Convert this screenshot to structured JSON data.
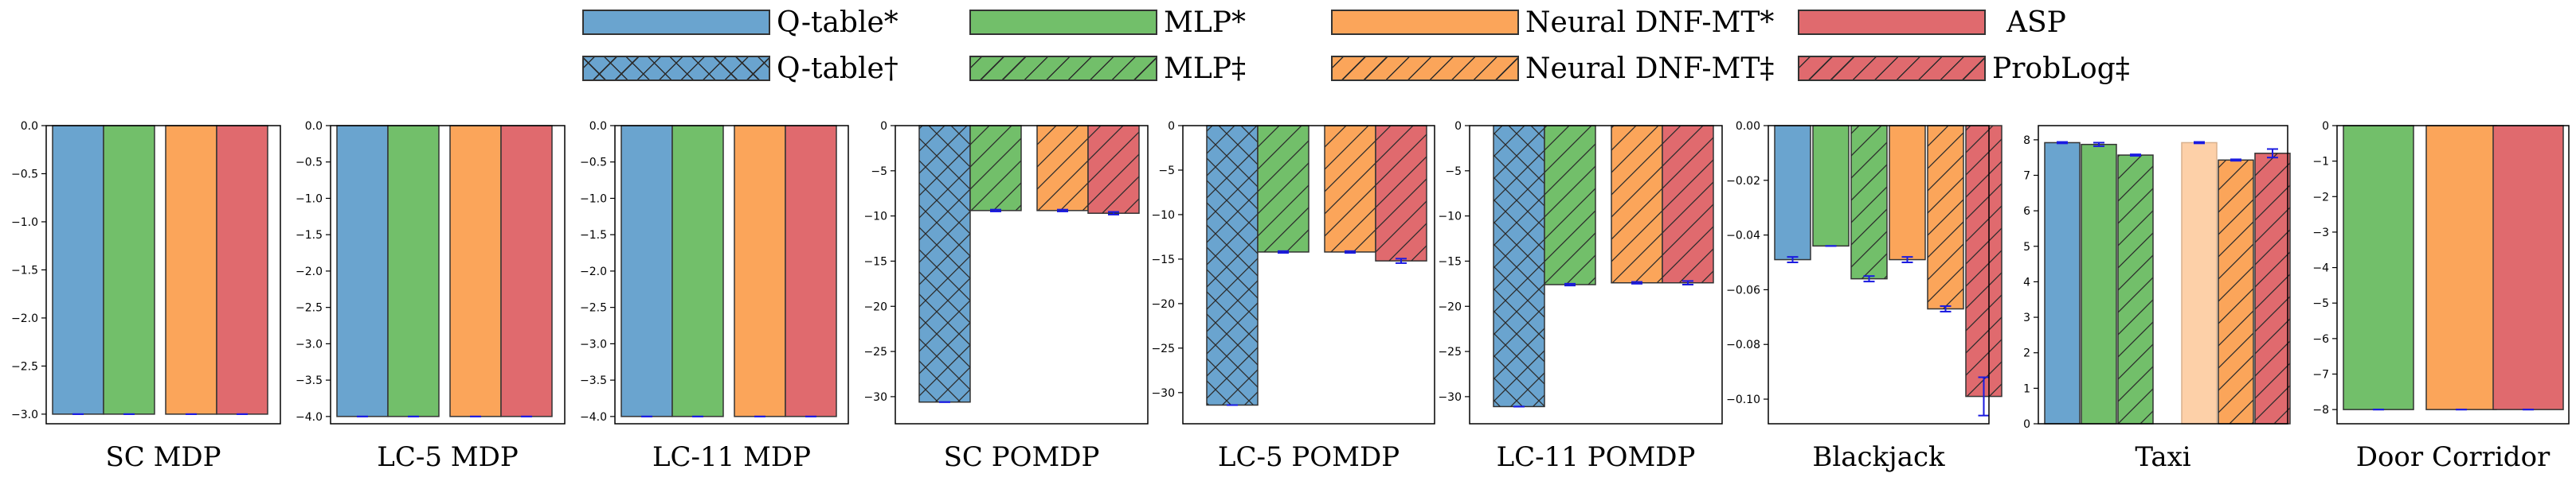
{
  "colors": {
    "qtable": "#6aa4cf",
    "mlp": "#72bf6a",
    "ndnf": "#fba55a",
    "asp": "#e06a6e",
    "ndnf_light": "#fdd0a8",
    "errorbar": "#1a1ae0",
    "edge": "#333333"
  },
  "legend": {
    "items": [
      {
        "label": "Q-table*",
        "color": "qtable",
        "hatch": "none"
      },
      {
        "label": "MLP*",
        "color": "mlp",
        "hatch": "none"
      },
      {
        "label": "Neural DNF-MT*",
        "color": "ndnf",
        "hatch": "none"
      },
      {
        "label": "ASP",
        "color": "asp",
        "hatch": "none"
      },
      {
        "label": "Q-table†",
        "color": "qtable",
        "hatch": "cross"
      },
      {
        "label": "MLP‡",
        "color": "mlp",
        "hatch": "diag"
      },
      {
        "label": "Neural DNF-MT‡",
        "color": "ndnf",
        "hatch": "diag"
      },
      {
        "label": "ProbLog‡",
        "color": "asp",
        "hatch": "diag"
      }
    ]
  },
  "chart_data": [
    {
      "type": "bar",
      "title": "SC MDP",
      "ylim": [
        -3.1,
        0.0
      ],
      "yticks": [
        0.0,
        -0.5,
        -1.0,
        -1.5,
        -2.0,
        -2.5,
        -3.0
      ],
      "ytick_labels": [
        "0.0",
        "−0.5",
        "−1.0",
        "−1.5",
        "−2.0",
        "−2.5",
        "−3.0"
      ],
      "series": [
        {
          "name": "Q-table*",
          "value": -3.0,
          "error": 0.0
        },
        {
          "name": "MLP*",
          "value": -3.0,
          "error": 0.0
        },
        {
          "name": "Neural DNF-MT*",
          "value": -3.0,
          "error": 0.0
        },
        {
          "name": "ASP",
          "value": -3.0,
          "error": 0.0
        }
      ]
    },
    {
      "type": "bar",
      "title": "LC-5 MDP",
      "ylim": [
        -4.1,
        0.0
      ],
      "yticks": [
        0.0,
        -0.5,
        -1.0,
        -1.5,
        -2.0,
        -2.5,
        -3.0,
        -3.5,
        -4.0
      ],
      "ytick_labels": [
        "0.0",
        "−0.5",
        "−1.0",
        "−1.5",
        "−2.0",
        "−2.5",
        "−3.0",
        "−3.5",
        "−4.0"
      ],
      "series": [
        {
          "name": "Q-table*",
          "value": -4.0,
          "error": 0.0
        },
        {
          "name": "MLP*",
          "value": -4.0,
          "error": 0.0
        },
        {
          "name": "Neural DNF-MT*",
          "value": -4.0,
          "error": 0.0
        },
        {
          "name": "ASP",
          "value": -4.0,
          "error": 0.0
        }
      ]
    },
    {
      "type": "bar",
      "title": "LC-11 MDP",
      "ylim": [
        -4.1,
        0.0
      ],
      "yticks": [
        0.0,
        -0.5,
        -1.0,
        -1.5,
        -2.0,
        -2.5,
        -3.0,
        -3.5,
        -4.0
      ],
      "ytick_labels": [
        "0.0",
        "−0.5",
        "−1.0",
        "−1.5",
        "−2.0",
        "−2.5",
        "−3.0",
        "−3.5",
        "−4.0"
      ],
      "series": [
        {
          "name": "Q-table*",
          "value": -4.0,
          "error": 0.0
        },
        {
          "name": "MLP*",
          "value": -4.0,
          "error": 0.0
        },
        {
          "name": "Neural DNF-MT*",
          "value": -4.0,
          "error": 0.0
        },
        {
          "name": "ASP",
          "value": -4.0,
          "error": 0.0
        }
      ]
    },
    {
      "type": "bar",
      "title": "SC POMDP",
      "ylim": [
        -33.0,
        0.0
      ],
      "yticks": [
        0,
        -5,
        -10,
        -15,
        -20,
        -25,
        -30
      ],
      "ytick_labels": [
        "0",
        "−5",
        "−10",
        "−15",
        "−20",
        "−25",
        "−30"
      ],
      "series": [
        {
          "name": "Q-table†",
          "value": -30.6,
          "error": 0.0
        },
        {
          "name": "MLP‡",
          "value": -9.4,
          "error": 0.1
        },
        {
          "name": "Neural DNF-MT‡",
          "value": -9.4,
          "error": 0.1
        },
        {
          "name": "ProbLog‡",
          "value": -9.7,
          "error": 0.15
        }
      ]
    },
    {
      "type": "bar",
      "title": "LC-5 POMDP",
      "ylim": [
        -33.5,
        0.0
      ],
      "yticks": [
        0,
        -5,
        -10,
        -15,
        -20,
        -25,
        -30
      ],
      "ytick_labels": [
        "0",
        "−5",
        "−10",
        "−15",
        "−20",
        "−25",
        "−30"
      ],
      "series": [
        {
          "name": "Q-table†",
          "value": -31.4,
          "error": 0.0
        },
        {
          "name": "MLP‡",
          "value": -14.2,
          "error": 0.1
        },
        {
          "name": "Neural DNF-MT‡",
          "value": -14.2,
          "error": 0.1
        },
        {
          "name": "ProbLog‡",
          "value": -15.2,
          "error": 0.25
        }
      ]
    },
    {
      "type": "bar",
      "title": "LC-11 POMDP",
      "ylim": [
        -33.0,
        0.0
      ],
      "yticks": [
        0,
        -5,
        -10,
        -15,
        -20,
        -25,
        -30
      ],
      "ytick_labels": [
        "0",
        "−5",
        "−10",
        "−15",
        "−20",
        "−25",
        "−30"
      ],
      "series": [
        {
          "name": "Q-table†",
          "value": -31.1,
          "error": 0.0
        },
        {
          "name": "MLP‡",
          "value": -17.6,
          "error": 0.1
        },
        {
          "name": "Neural DNF-MT‡",
          "value": -17.4,
          "error": 0.1
        },
        {
          "name": "ProbLog‡",
          "value": -17.4,
          "error": 0.2
        }
      ]
    },
    {
      "type": "bar",
      "title": "Blackjack",
      "ylim": [
        -0.109,
        0.0
      ],
      "yticks": [
        0.0,
        -0.02,
        -0.04,
        -0.06,
        -0.08,
        -0.1
      ],
      "ytick_labels": [
        "0.00",
        "−0.02",
        "−0.04",
        "−0.06",
        "−0.08",
        "−0.10"
      ],
      "series": [
        {
          "name": "Q-table*",
          "value": -0.049,
          "error": 0.001
        },
        {
          "name": "MLP*",
          "value": -0.044,
          "error": 0.0
        },
        {
          "name": "MLP‡",
          "value": -0.056,
          "error": 0.001
        },
        {
          "name": "Neural DNF-MT*",
          "value": -0.049,
          "error": 0.001
        },
        {
          "name": "Neural DNF-MT‡",
          "value": -0.067,
          "error": 0.001
        },
        {
          "name": "ProbLog‡",
          "value": -0.099,
          "error": 0.007
        }
      ]
    },
    {
      "type": "bar",
      "title": "Taxi",
      "ylim": [
        0.0,
        8.4
      ],
      "yticks": [
        0,
        1,
        2,
        3,
        4,
        5,
        6,
        7,
        8
      ],
      "ytick_labels": [
        "0",
        "1",
        "2",
        "3",
        "4",
        "5",
        "6",
        "7",
        "8"
      ],
      "series": [
        {
          "name": "Q-table*",
          "value": 7.92,
          "error": 0.02
        },
        {
          "name": "MLP*",
          "value": 7.87,
          "error": 0.05
        },
        {
          "name": "MLP‡",
          "value": 7.57,
          "error": 0.02
        },
        {
          "name": "Neural DNF-MT*",
          "value": 7.92,
          "error": 0.02
        },
        {
          "name": "Neural DNF-MT‡",
          "value": 7.43,
          "error": 0.02
        },
        {
          "name": "ProbLog‡",
          "value": 7.62,
          "error": 0.12
        }
      ]
    },
    {
      "type": "bar",
      "title": "Door Corridor",
      "ylim": [
        -8.4,
        0.0
      ],
      "yticks": [
        0,
        -1,
        -2,
        -3,
        -4,
        -5,
        -6,
        -7,
        -8
      ],
      "ytick_labels": [
        "0",
        "−1",
        "−2",
        "−3",
        "−4",
        "−5",
        "−6",
        "−7",
        "−8"
      ],
      "series": [
        {
          "name": "MLP*",
          "value": -8.0,
          "error": 0.0
        },
        {
          "name": "Neural DNF-MT*",
          "value": -8.0,
          "error": 0.0
        },
        {
          "name": "ASP",
          "value": -8.0,
          "error": 0.0
        }
      ]
    }
  ]
}
